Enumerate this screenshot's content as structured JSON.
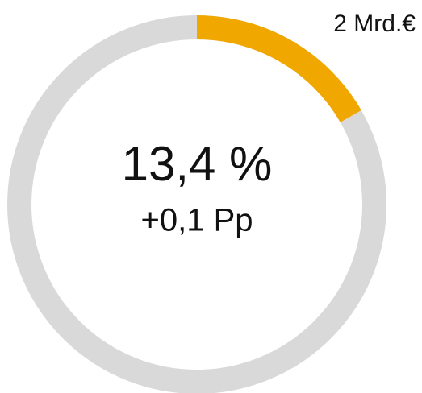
{
  "chart_data": {
    "type": "donut",
    "series": [
      {
        "name": "2 Mrd.€",
        "color": "#f0a800",
        "values": [
          16.7
        ]
      }
    ],
    "track_color": "#d9d9d9",
    "center_label": "13,4 %",
    "center_sublabel": "+0,1 Pp"
  }
}
